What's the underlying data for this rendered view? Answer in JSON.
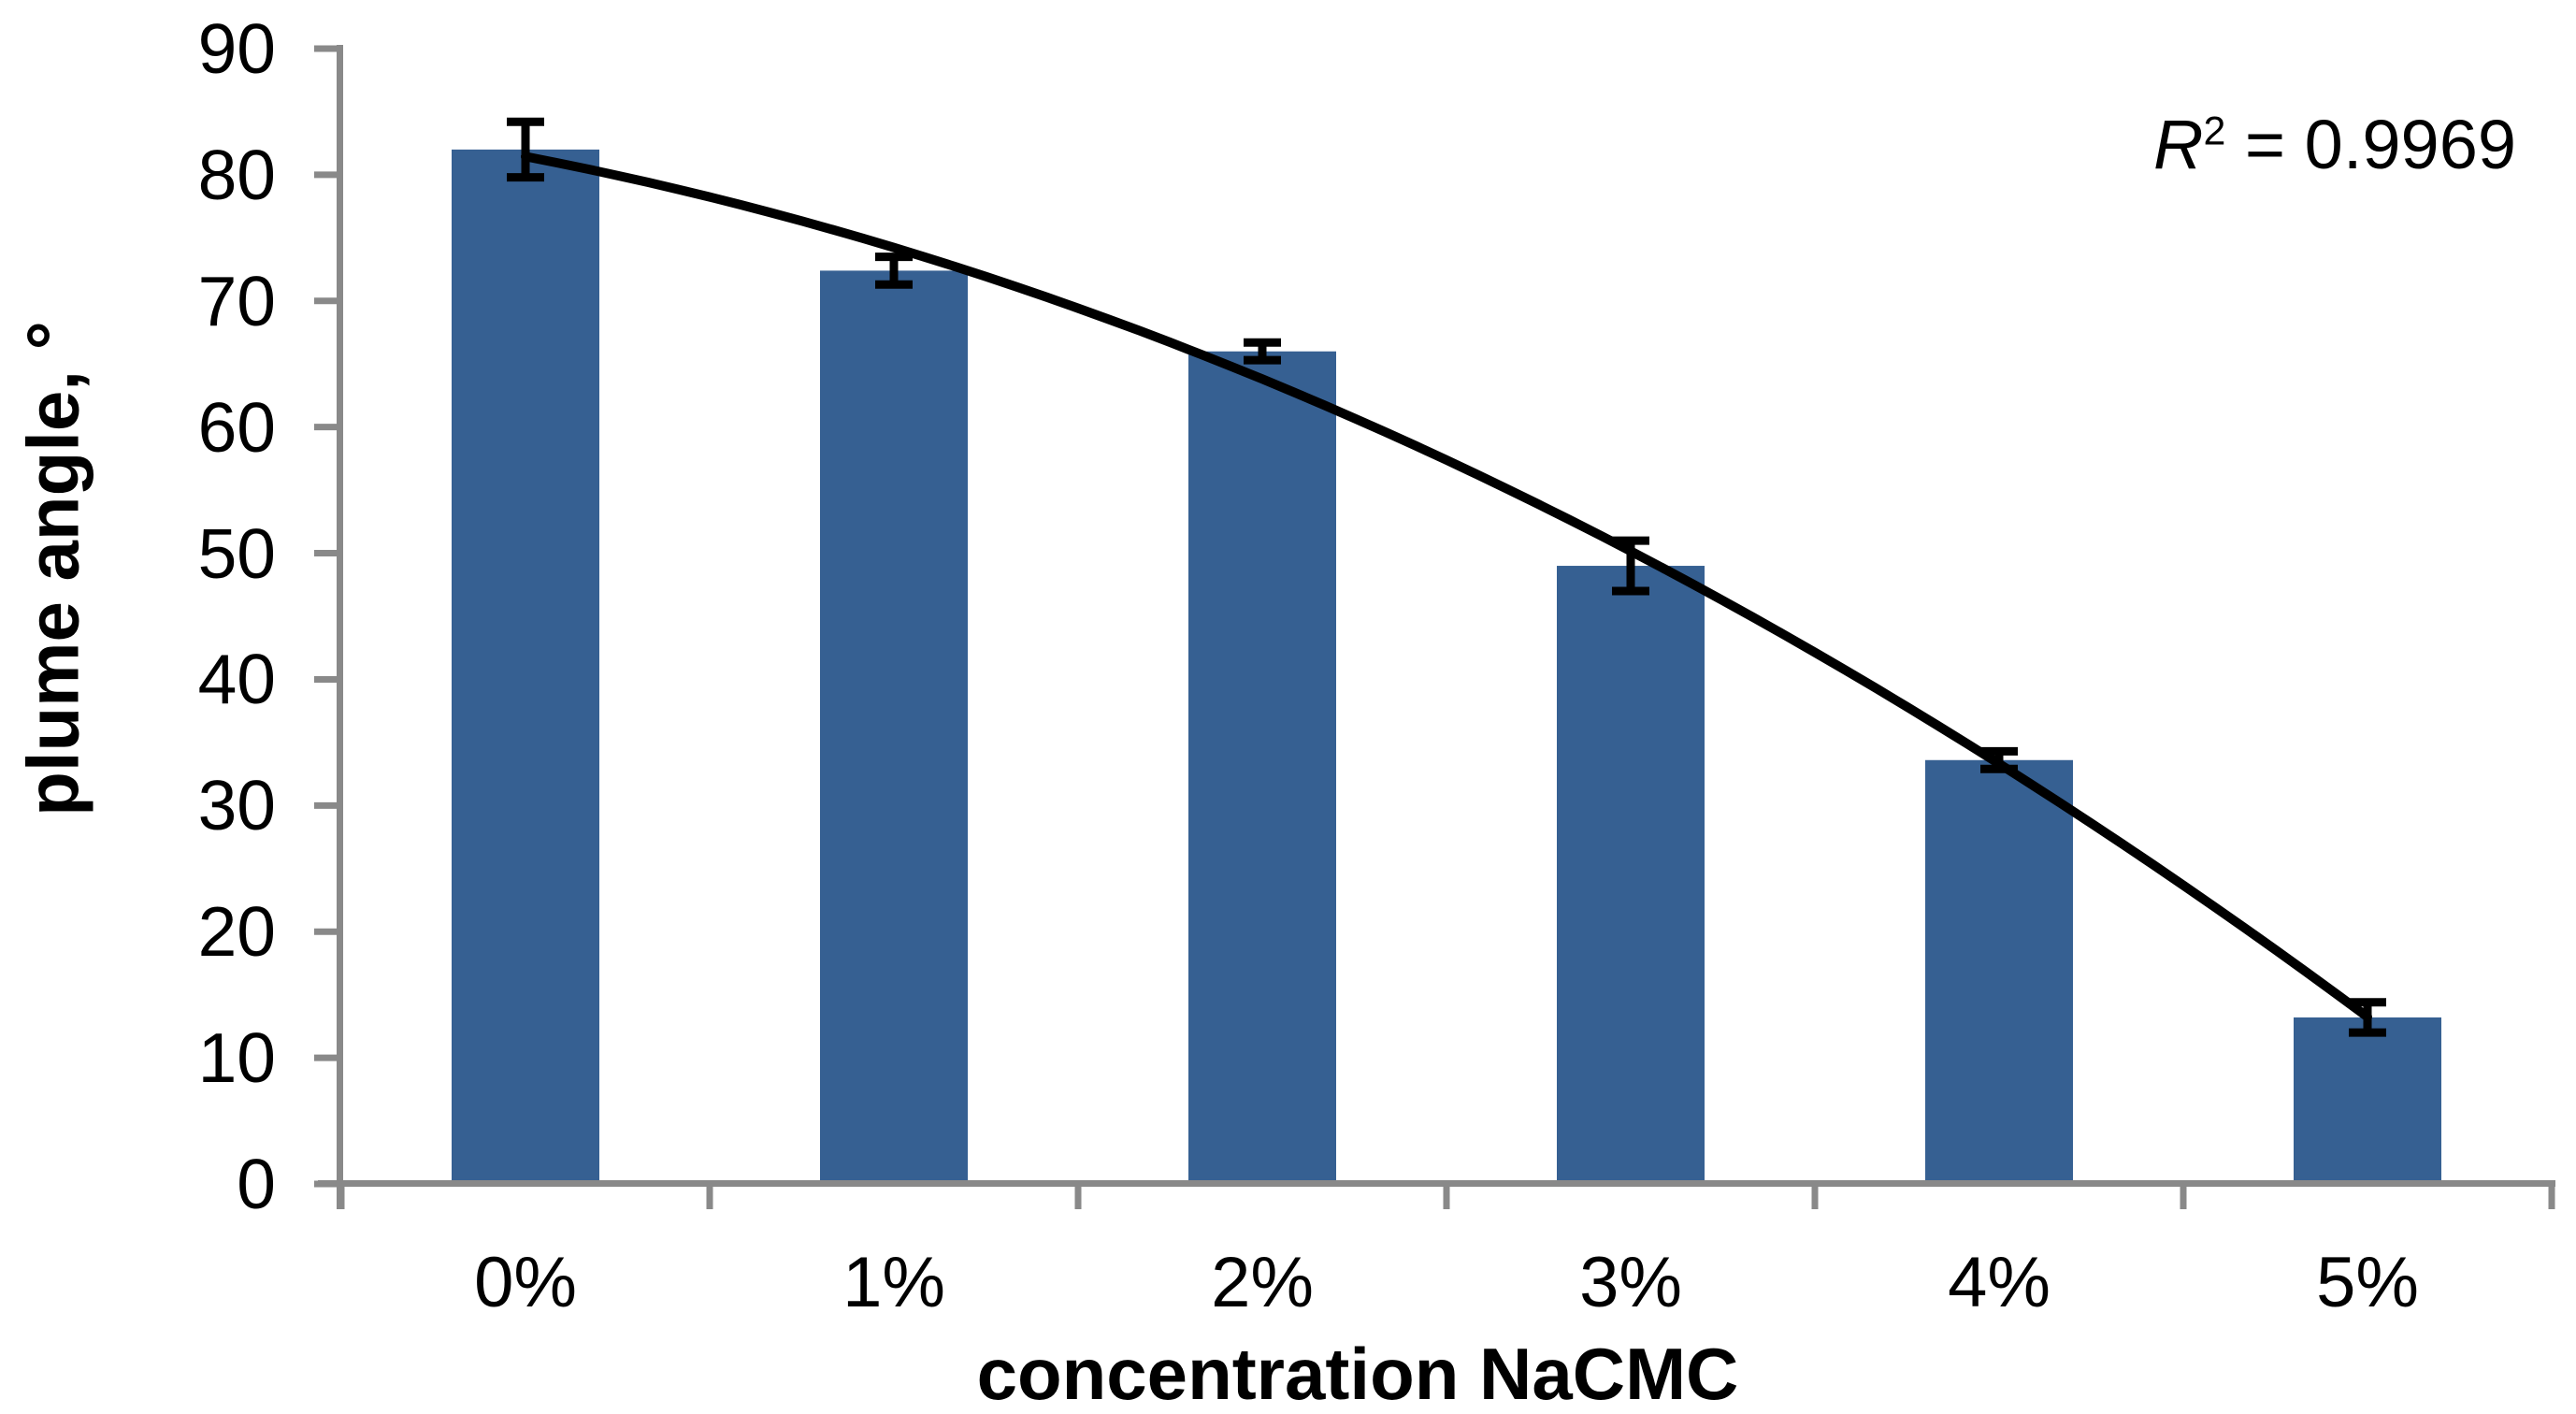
{
  "chart_data": {
    "type": "bar",
    "title": "",
    "categories": [
      "0%",
      "1%",
      "2%",
      "3%",
      "4%",
      "5%"
    ],
    "values": [
      82.0,
      72.4,
      66.0,
      49.0,
      33.6,
      13.2
    ],
    "error_bars": [
      2.2,
      1.1,
      0.7,
      2.0,
      0.7,
      1.2
    ],
    "xlabel": "concentration NaCMC",
    "ylabel": "plume angle, °",
    "ylim": [
      0,
      90
    ],
    "yticks": [
      0,
      10,
      20,
      30,
      40,
      50,
      60,
      70,
      80,
      90
    ],
    "grid": false,
    "legend": "none",
    "trendline": {
      "type": "polynomial",
      "order": 2,
      "r_squared": "0.9969"
    },
    "colors": {
      "bar": "#366092",
      "axis": "#898989",
      "trendline": "#000000",
      "error_bar": "#000000",
      "text": "#000000"
    }
  },
  "annotation": {
    "r_label": "R",
    "r_sup": "2",
    "r_rest": " = 0.9969"
  }
}
